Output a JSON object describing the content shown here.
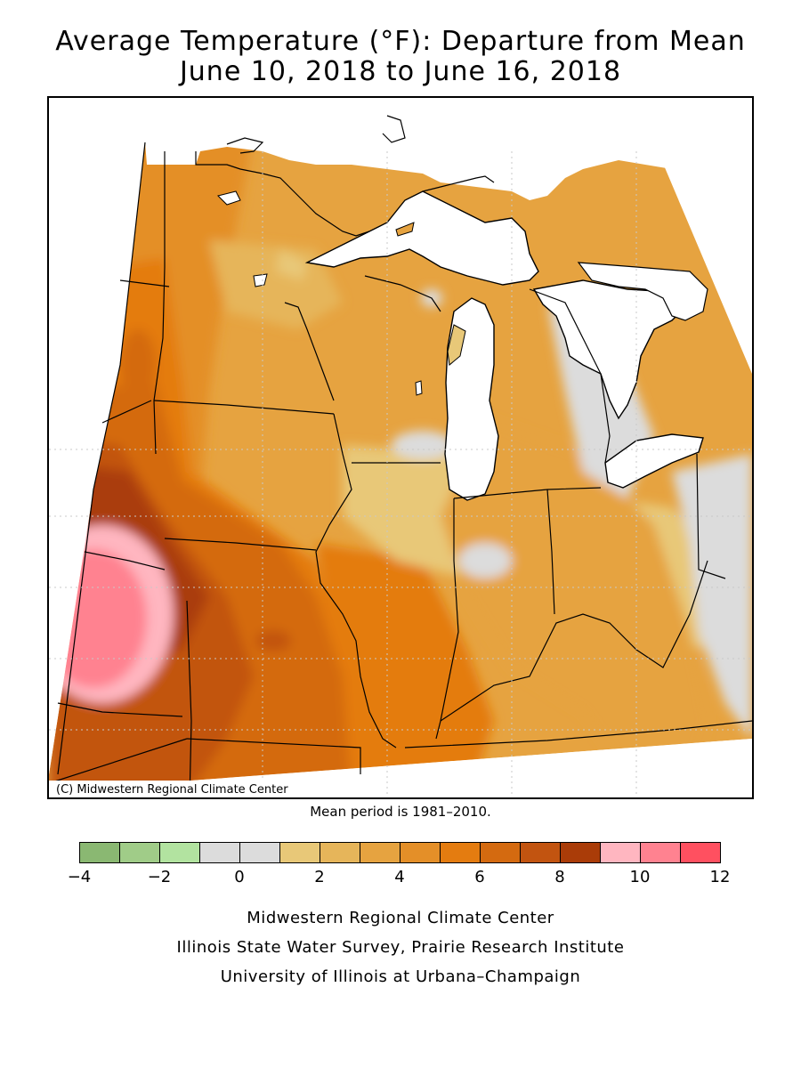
{
  "title": {
    "line1": "Average Temperature (°F): Departure from Mean",
    "line2": "June 10, 2018 to June 16, 2018"
  },
  "map": {
    "copyright": "(C) Midwestern Regional Climate Center",
    "mean_period": "Mean period is 1981–2010."
  },
  "legend": {
    "bins": [
      {
        "from": -4,
        "to": -3,
        "color": "#8ab872"
      },
      {
        "from": -3,
        "to": -2,
        "color": "#a0cc88"
      },
      {
        "from": -2,
        "to": -1,
        "color": "#b2e3a0"
      },
      {
        "from": -1,
        "to": 0,
        "color": "#dcdcdc"
      },
      {
        "from": 0,
        "to": 1,
        "color": "#dcdcdc"
      },
      {
        "from": 1,
        "to": 2,
        "color": "#e8c878"
      },
      {
        "from": 2,
        "to": 3,
        "color": "#e6b55a"
      },
      {
        "from": 3,
        "to": 4,
        "color": "#e6a340"
      },
      {
        "from": 4,
        "to": 5,
        "color": "#e48f28"
      },
      {
        "from": 5,
        "to": 6,
        "color": "#e47c10"
      },
      {
        "from": 6,
        "to": 7,
        "color": "#d46a10"
      },
      {
        "from": 7,
        "to": 8,
        "color": "#c25410"
      },
      {
        "from": 8,
        "to": 9,
        "color": "#aa3c08"
      },
      {
        "from": 9,
        "to": 10,
        "color": "#ffb6c0"
      },
      {
        "from": 10,
        "to": 11,
        "color": "#ff8290"
      },
      {
        "from": 11,
        "to": 12,
        "color": "#ff5060"
      }
    ],
    "ticks": [
      "−4",
      "−2",
      "0",
      "2",
      "4",
      "6",
      "8",
      "10",
      "12"
    ]
  },
  "footer": {
    "line1": "Midwestern Regional Climate Center",
    "line2": "Illinois State Water Survey, Prairie Research Institute",
    "line3": "University of Illinois at Urbana–Champaign"
  }
}
